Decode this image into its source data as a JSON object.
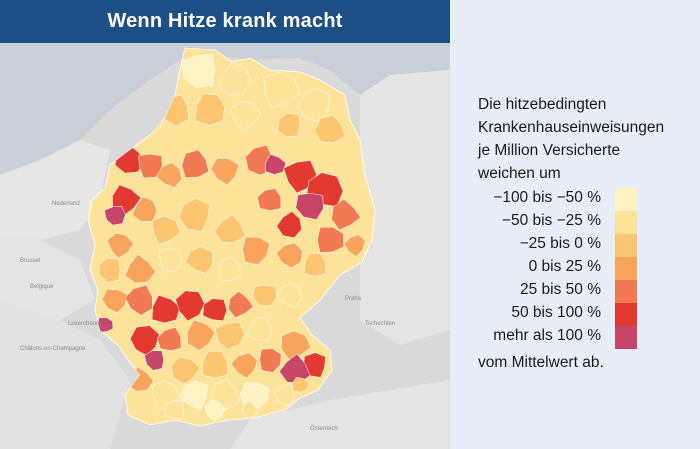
{
  "title": "Wenn Hitze krank macht",
  "legend": {
    "heading_lines": [
      "Die hitzebedingten",
      "Krankenhauseinweisungen",
      "je Million Versicherte",
      "weichen um"
    ],
    "items": [
      {
        "label": "−100 bis −50 %",
        "color": "#fdf3c2"
      },
      {
        "label": "−50 bis −25 %",
        "color": "#fde39a"
      },
      {
        "label": "−25 bis 0 %",
        "color": "#fcc56f"
      },
      {
        "label": "0 bis 25 %",
        "color": "#f9a45c"
      },
      {
        "label": "25 bis 50 %",
        "color": "#f27a52"
      },
      {
        "label": "50 bis 100 %",
        "color": "#e23a31"
      },
      {
        "label": "mehr als 100 %",
        "color": "#c8456a"
      }
    ],
    "footer": "vom Mittelwert ab."
  },
  "map_labels": {
    "nederland": "Nederland",
    "belgique": "Belgique",
    "luxembourg": "Luxembourg",
    "tschechien": "Tschechien",
    "oesterreich": "Österreich",
    "praha": "Praha",
    "brussel": "Brussel",
    "chalons": "Châlons-en-Champagne"
  }
}
